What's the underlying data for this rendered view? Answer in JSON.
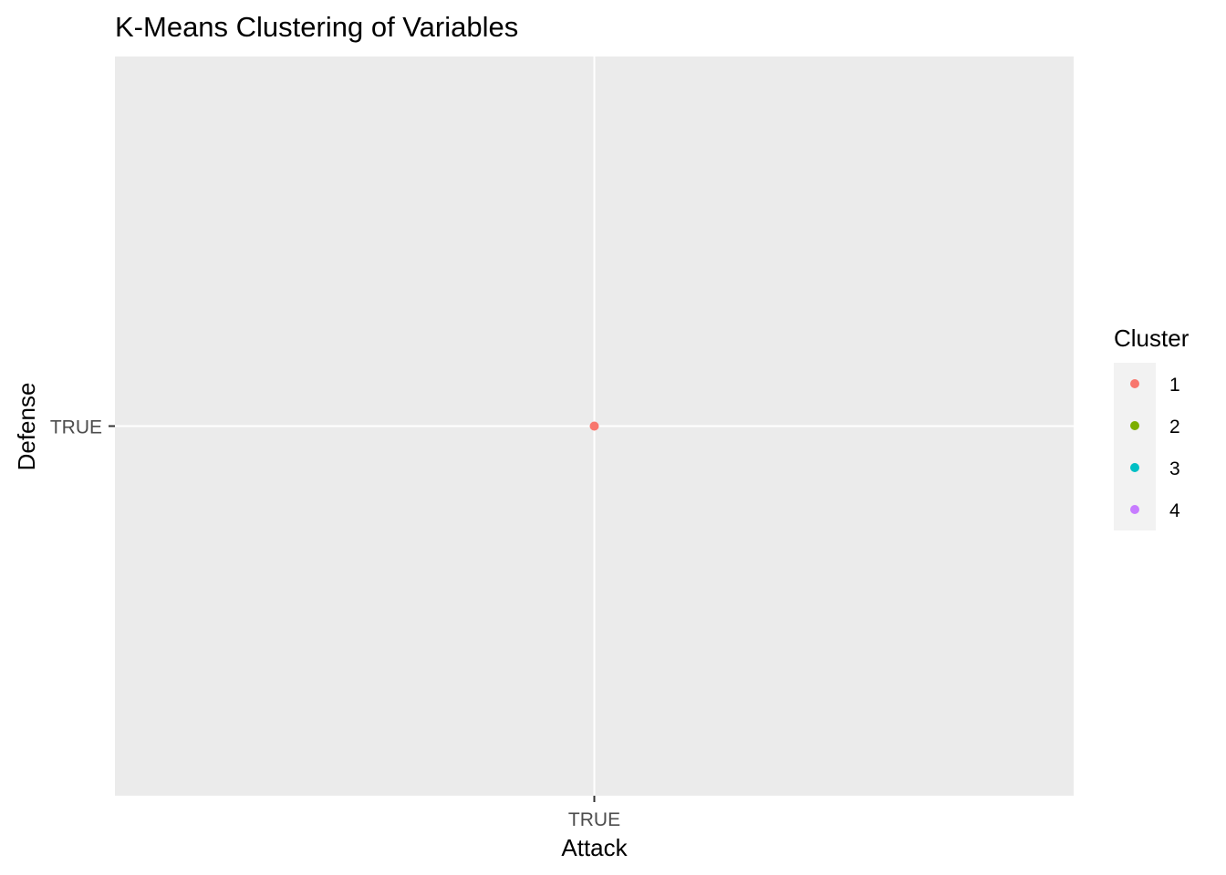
{
  "chart_data": {
    "type": "scatter",
    "title": "K-Means Clustering of Variables",
    "xlabel": "Attack",
    "ylabel": "Defense",
    "x_categories": [
      "TRUE"
    ],
    "y_categories": [
      "TRUE"
    ],
    "grid": true,
    "legend": {
      "title": "Cluster",
      "position": "right",
      "entries": [
        {
          "label": "1",
          "color": "#F8766D"
        },
        {
          "label": "2",
          "color": "#7CAE00"
        },
        {
          "label": "3",
          "color": "#00BFC4"
        },
        {
          "label": "4",
          "color": "#C77CFF"
        }
      ]
    },
    "points": [
      {
        "x": "TRUE",
        "y": "TRUE",
        "cluster": "1"
      }
    ]
  },
  "colors": {
    "panel_background": "#EBEBEB",
    "grid_line": "#FFFFFF",
    "tick_text": "#4D4D4D",
    "legend_key_background": "#F2F2F2"
  }
}
